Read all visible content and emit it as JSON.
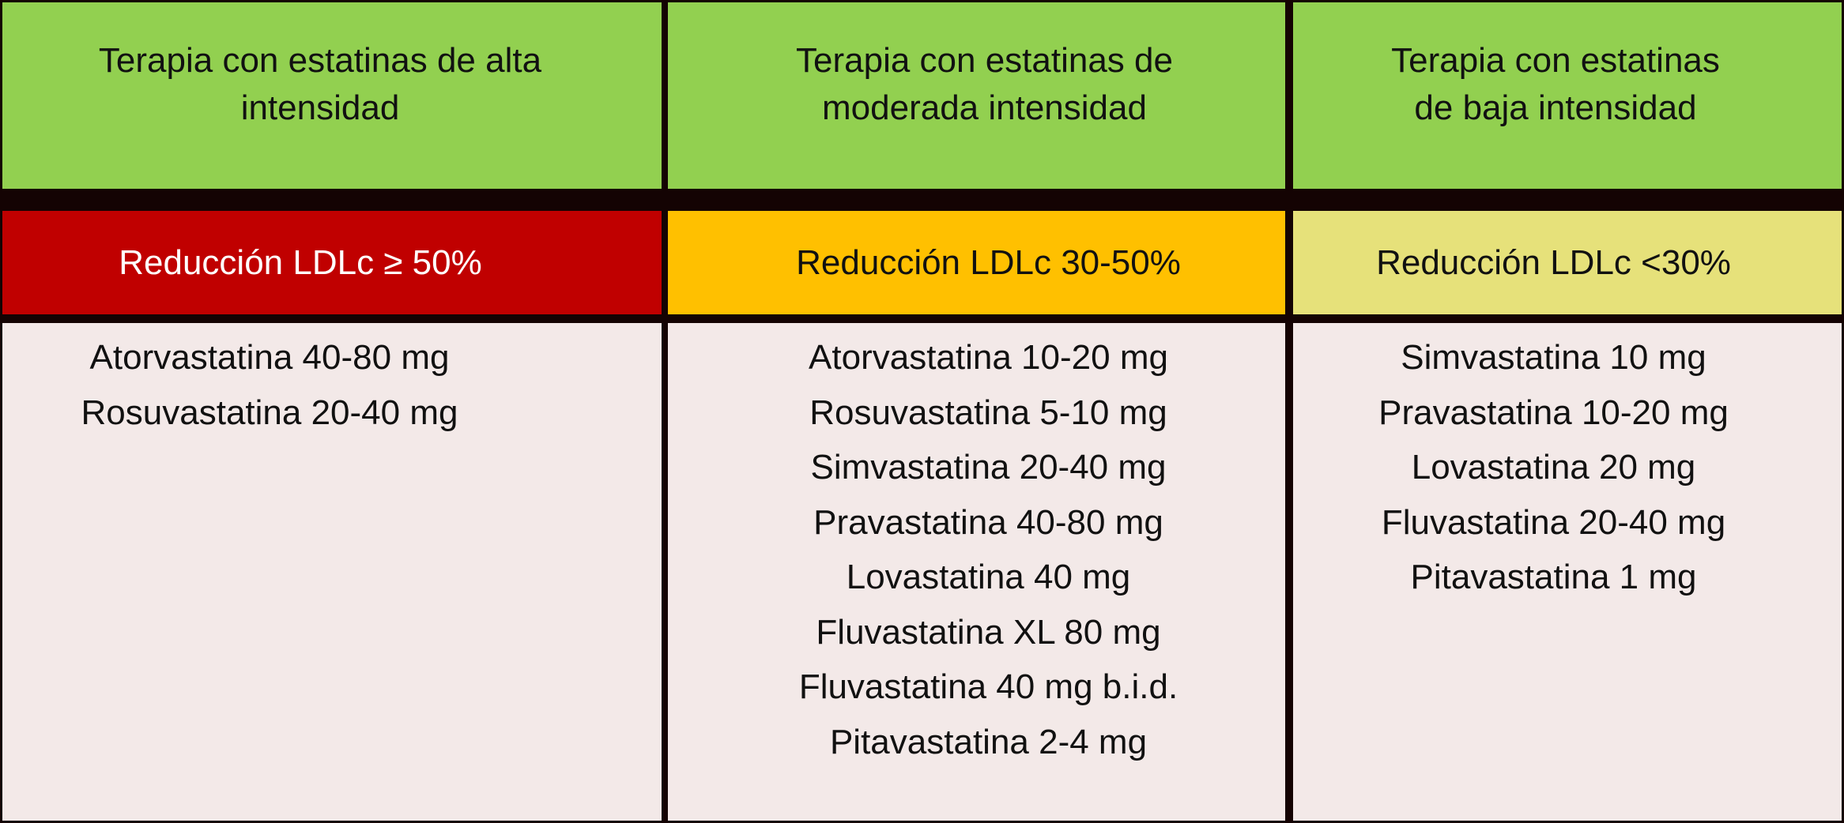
{
  "columns": [
    {
      "header_lines": [
        "Terapia con estatinas de alta",
        "intensidad"
      ],
      "reduction": "Reducción LDLc ≥ 50%",
      "reduction_color": "#c00000",
      "drugs": [
        "Atorvastatina 40-80 mg",
        "Rosuvastatina 20-40 mg"
      ]
    },
    {
      "header_lines": [
        "Terapia con estatinas de",
        "moderada intensidad"
      ],
      "reduction": "Reducción LDLc 30-50%",
      "reduction_color": "#ffc000",
      "drugs": [
        "Atorvastatina 10-20 mg",
        "Rosuvastatina 5-10 mg",
        "Simvastatina 20-40 mg",
        "Pravastatina 40-80 mg",
        "Lovastatina 40 mg",
        "Fluvastatina XL 80 mg",
        "Fluvastatina 40 mg b.i.d.",
        "Pitavastatina 2-4 mg"
      ]
    },
    {
      "header_lines": [
        "Terapia con estatinas",
        "de baja intensidad"
      ],
      "reduction": "Reducción LDLc <30%",
      "reduction_color": "#e6e17a",
      "drugs": [
        "Simvastatina 10 mg",
        "Pravastatina 10-20 mg",
        "Lovastatina 20 mg",
        "Fluvastatina 20-40 mg",
        "Pitavastatina 1 mg"
      ]
    }
  ],
  "colors": {
    "header_green": "#92d050",
    "body_background": "#f3e9e8",
    "grid_lines": "#140303"
  }
}
